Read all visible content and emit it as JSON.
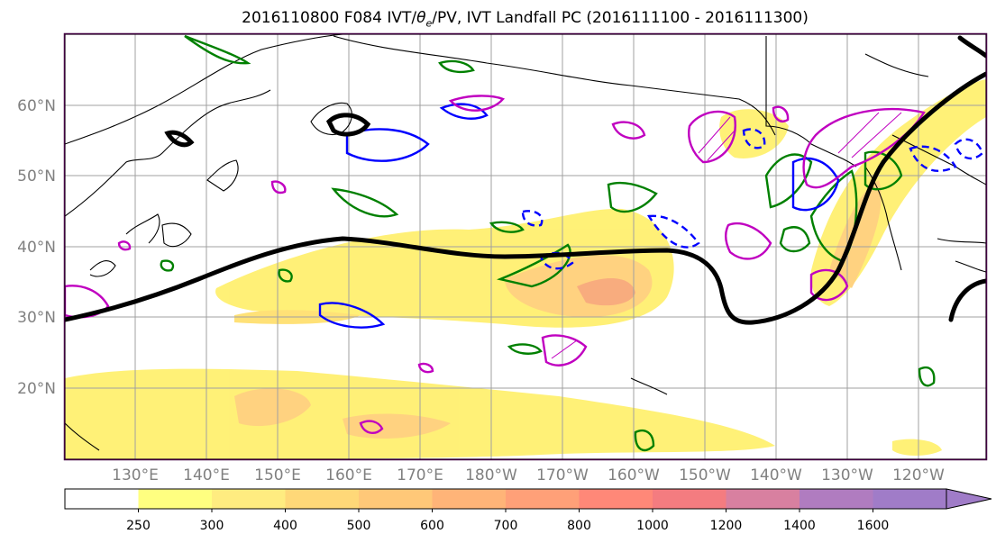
{
  "title": "2016110800 F084 IVT/θe/PV, IVT Landfall PC (2016111100 - 2016111300)",
  "title_parts": {
    "pre": "2016110800 F084 IVT/",
    "sym": "θ",
    "sub": "e",
    "post": "/PV, IVT Landfall PC (2016111100 - 2016111300)"
  },
  "lon_labels": [
    "130°E",
    "140°E",
    "150°E",
    "160°E",
    "170°E",
    "180°W",
    "170°W",
    "160°W",
    "150°W",
    "140°W",
    "130°W",
    "120°W"
  ],
  "lat_labels": [
    "60°N",
    "50°N",
    "40°N",
    "30°N",
    "20°N"
  ],
  "colorbar": {
    "labels": [
      "250",
      "300",
      "400",
      "500",
      "600",
      "700",
      "800",
      "1000",
      "1200",
      "1400",
      "1600"
    ],
    "colors": [
      "#ffffff",
      "#ffff80",
      "#ffec80",
      "#ffd878",
      "#ffc878",
      "#ffb478",
      "#ffa078",
      "#ff8878",
      "#f47c80",
      "#d880a0",
      "#b07cc0",
      "#a07cc8"
    ]
  },
  "colors": {
    "ivt_fill": "#fff070",
    "ivt_mid": "#ffd07a",
    "ivt_high": "#f8a878",
    "pv_blue": "#0000ff",
    "pv_green": "#008000",
    "pv_magenta": "#c000c0",
    "landfall": "#000000"
  }
}
